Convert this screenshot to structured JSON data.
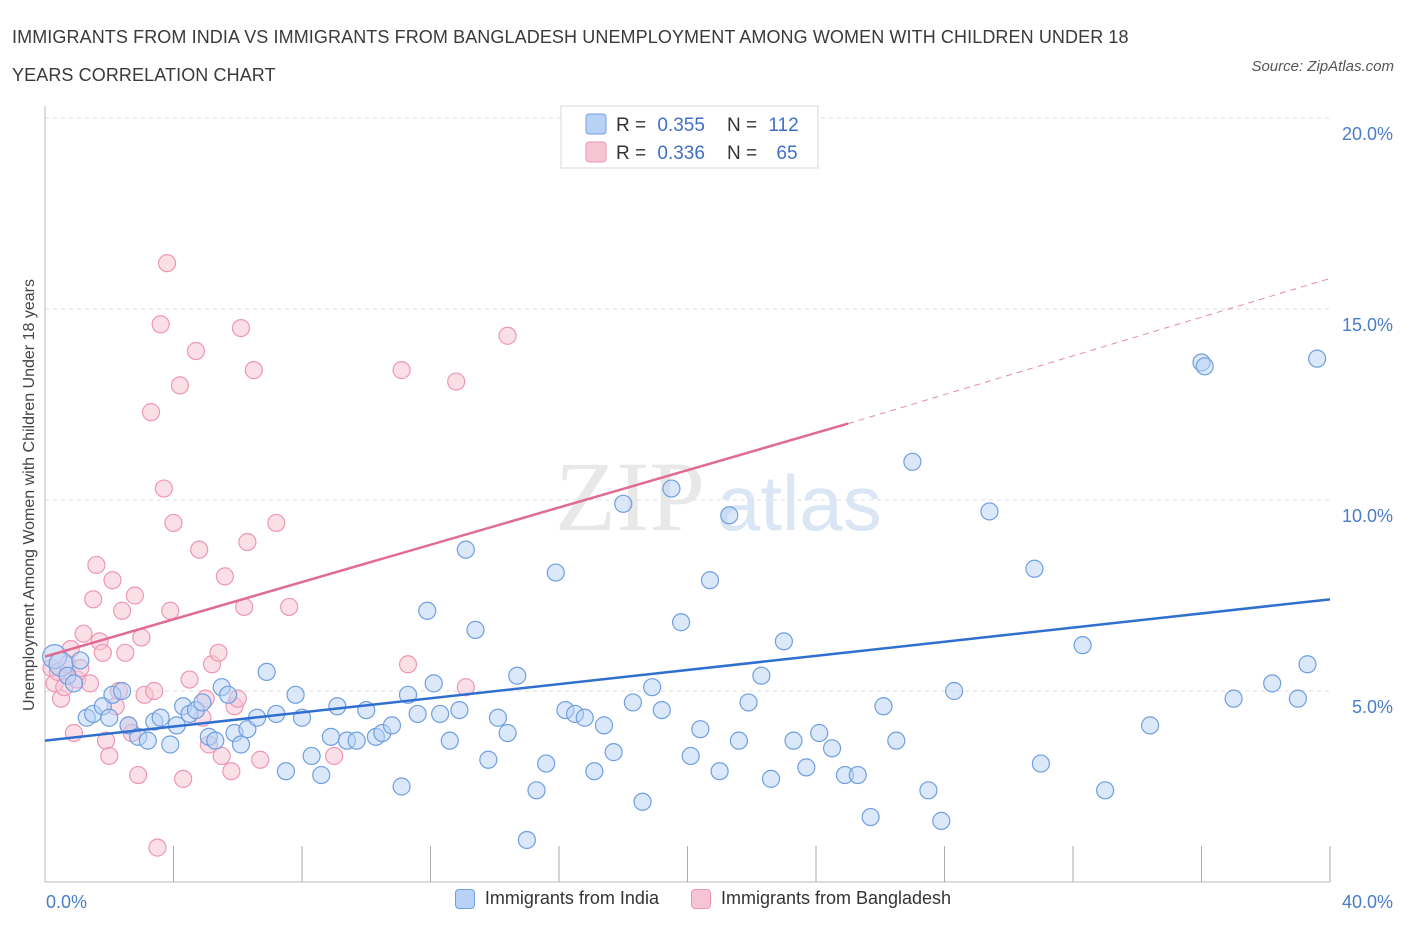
{
  "header": {
    "title": "IMMIGRANTS FROM INDIA VS IMMIGRANTS FROM BANGLADESH UNEMPLOYMENT AMONG WOMEN WITH CHILDREN UNDER 18 YEARS CORRELATION CHART",
    "source": "Source: ZipAtlas.com"
  },
  "watermark": {
    "zip": "ZIP",
    "atlas": "atlas"
  },
  "legend": {
    "india": {
      "r_label": "R = ",
      "r_value": "0.355",
      "n_label": "N = ",
      "n_value": "112"
    },
    "bangladesh": {
      "r_label": "R = ",
      "r_value": "0.336",
      "n_label": "N = ",
      "n_value": "65"
    }
  },
  "colors": {
    "india_fill": "#b8d2f5",
    "india_stroke": "#6f9fe0",
    "india_line": "#2f6fcf",
    "bangladesh_fill": "#f7c4d4",
    "bangladesh_stroke": "#ee97b3",
    "bangladesh_line": "#e06b93",
    "tick": "#4a7cc7",
    "grid": "#dddddd"
  },
  "chart_data": {
    "type": "scatter",
    "ylabel": "Unemployment Among Women with Children Under 18 years",
    "xlim": [
      0,
      40
    ],
    "ylim": [
      0,
      20
    ],
    "x_ticks": [
      {
        "value": 0,
        "label": "0.0%"
      },
      {
        "value": 40,
        "label": "40.0%"
      }
    ],
    "y_ticks": [
      {
        "value": 5,
        "label": "5.0%"
      },
      {
        "value": 10,
        "label": "10.0%"
      },
      {
        "value": 15,
        "label": "15.0%"
      },
      {
        "value": 20,
        "label": "20.0%"
      }
    ],
    "legend_position": "top-center",
    "grid": "horizontal dashed",
    "series": [
      {
        "name": "Immigrants from India",
        "r": 0.355,
        "n": 112,
        "trend": [
          [
            0,
            3.7
          ],
          [
            40,
            7.4
          ]
        ],
        "points": [
          [
            0.3,
            5.9
          ],
          [
            0.5,
            5.7
          ],
          [
            0.7,
            5.4
          ],
          [
            0.9,
            5.2
          ],
          [
            1.1,
            5.8
          ],
          [
            1.3,
            4.3
          ],
          [
            1.5,
            4.4
          ],
          [
            1.8,
            4.6
          ],
          [
            2.0,
            4.3
          ],
          [
            2.1,
            4.9
          ],
          [
            2.4,
            5.0
          ],
          [
            2.6,
            4.1
          ],
          [
            2.9,
            3.8
          ],
          [
            3.2,
            3.7
          ],
          [
            3.4,
            4.2
          ],
          [
            3.6,
            4.3
          ],
          [
            3.9,
            3.6
          ],
          [
            4.1,
            4.1
          ],
          [
            4.3,
            4.6
          ],
          [
            4.5,
            4.4
          ],
          [
            4.7,
            4.5
          ],
          [
            4.9,
            4.7
          ],
          [
            5.1,
            3.8
          ],
          [
            5.3,
            3.7
          ],
          [
            5.5,
            5.1
          ],
          [
            5.7,
            4.9
          ],
          [
            5.9,
            3.9
          ],
          [
            6.1,
            3.6
          ],
          [
            6.3,
            4.0
          ],
          [
            6.6,
            4.3
          ],
          [
            6.9,
            5.5
          ],
          [
            7.2,
            4.4
          ],
          [
            7.5,
            2.9
          ],
          [
            7.8,
            4.9
          ],
          [
            8.0,
            4.3
          ],
          [
            8.3,
            3.3
          ],
          [
            8.6,
            2.8
          ],
          [
            8.9,
            3.8
          ],
          [
            9.1,
            4.6
          ],
          [
            9.4,
            3.7
          ],
          [
            9.7,
            3.7
          ],
          [
            10.0,
            4.5
          ],
          [
            10.3,
            3.8
          ],
          [
            10.5,
            3.9
          ],
          [
            10.8,
            4.1
          ],
          [
            11.1,
            2.5
          ],
          [
            11.3,
            4.9
          ],
          [
            11.6,
            4.4
          ],
          [
            11.9,
            7.1
          ],
          [
            12.1,
            5.2
          ],
          [
            12.3,
            4.4
          ],
          [
            12.6,
            3.7
          ],
          [
            12.9,
            4.5
          ],
          [
            13.1,
            8.7
          ],
          [
            13.4,
            6.6
          ],
          [
            13.8,
            3.2
          ],
          [
            14.1,
            4.3
          ],
          [
            14.4,
            3.9
          ],
          [
            14.7,
            5.4
          ],
          [
            15.0,
            1.1
          ],
          [
            15.3,
            2.4
          ],
          [
            15.6,
            3.1
          ],
          [
            15.9,
            8.1
          ],
          [
            16.2,
            4.5
          ],
          [
            16.5,
            4.4
          ],
          [
            16.8,
            4.3
          ],
          [
            17.1,
            2.9
          ],
          [
            17.4,
            4.1
          ],
          [
            17.7,
            3.4
          ],
          [
            18.0,
            9.9
          ],
          [
            18.3,
            4.7
          ],
          [
            18.6,
            2.1
          ],
          [
            18.9,
            5.1
          ],
          [
            19.2,
            4.5
          ],
          [
            19.5,
            10.3
          ],
          [
            19.8,
            6.8
          ],
          [
            20.1,
            3.3
          ],
          [
            20.4,
            4.0
          ],
          [
            20.7,
            7.9
          ],
          [
            21.0,
            2.9
          ],
          [
            21.3,
            9.6
          ],
          [
            21.6,
            3.7
          ],
          [
            21.9,
            4.7
          ],
          [
            22.3,
            5.4
          ],
          [
            22.6,
            2.7
          ],
          [
            23.0,
            6.3
          ],
          [
            23.3,
            3.7
          ],
          [
            23.7,
            3.0
          ],
          [
            24.1,
            3.9
          ],
          [
            24.5,
            3.5
          ],
          [
            24.9,
            2.8
          ],
          [
            25.3,
            2.8
          ],
          [
            25.7,
            1.7
          ],
          [
            26.1,
            4.6
          ],
          [
            26.5,
            3.7
          ],
          [
            27.0,
            11.0
          ],
          [
            27.5,
            2.4
          ],
          [
            27.9,
            1.6
          ],
          [
            28.3,
            5.0
          ],
          [
            29.4,
            9.7
          ],
          [
            30.8,
            8.2
          ],
          [
            31.0,
            3.1
          ],
          [
            32.3,
            6.2
          ],
          [
            33.0,
            2.4
          ],
          [
            34.4,
            4.1
          ],
          [
            36.0,
            13.6
          ],
          [
            36.1,
            13.5
          ],
          [
            37.0,
            4.8
          ],
          [
            38.2,
            5.2
          ],
          [
            39.0,
            4.8
          ],
          [
            39.3,
            5.7
          ],
          [
            39.6,
            13.7
          ]
        ]
      },
      {
        "name": "Immigrants from Bangladesh",
        "r": 0.336,
        "n": 65,
        "trend": [
          [
            0,
            5.9
          ],
          [
            25,
            12.0
          ]
        ],
        "trend_extension": [
          [
            25,
            12.0
          ],
          [
            40,
            15.8
          ]
        ],
        "points": [
          [
            0.2,
            5.6
          ],
          [
            0.3,
            5.2
          ],
          [
            0.4,
            5.5
          ],
          [
            0.5,
            4.8
          ],
          [
            0.6,
            5.1
          ],
          [
            0.7,
            5.7
          ],
          [
            0.8,
            6.1
          ],
          [
            0.9,
            3.9
          ],
          [
            1.0,
            5.3
          ],
          [
            1.1,
            5.6
          ],
          [
            1.2,
            6.5
          ],
          [
            1.4,
            5.2
          ],
          [
            1.5,
            7.4
          ],
          [
            1.6,
            8.3
          ],
          [
            1.7,
            6.3
          ],
          [
            1.8,
            6.0
          ],
          [
            1.9,
            3.7
          ],
          [
            2.0,
            3.3
          ],
          [
            2.1,
            7.9
          ],
          [
            2.2,
            4.6
          ],
          [
            2.3,
            5.0
          ],
          [
            2.4,
            7.1
          ],
          [
            2.5,
            6.0
          ],
          [
            2.6,
            4.1
          ],
          [
            2.7,
            3.9
          ],
          [
            2.8,
            7.5
          ],
          [
            2.9,
            2.8
          ],
          [
            3.0,
            6.4
          ],
          [
            3.1,
            4.9
          ],
          [
            3.3,
            12.3
          ],
          [
            3.4,
            5.0
          ],
          [
            3.5,
            0.9
          ],
          [
            3.6,
            14.6
          ],
          [
            3.7,
            10.3
          ],
          [
            3.8,
            16.2
          ],
          [
            3.9,
            7.1
          ],
          [
            4.0,
            9.4
          ],
          [
            4.2,
            13.0
          ],
          [
            4.3,
            2.7
          ],
          [
            4.5,
            5.3
          ],
          [
            4.7,
            13.9
          ],
          [
            4.8,
            8.7
          ],
          [
            4.9,
            4.3
          ],
          [
            5.0,
            4.8
          ],
          [
            5.1,
            3.6
          ],
          [
            5.2,
            5.7
          ],
          [
            5.4,
            6.0
          ],
          [
            5.5,
            3.3
          ],
          [
            5.6,
            8.0
          ],
          [
            5.8,
            2.9
          ],
          [
            5.9,
            4.6
          ],
          [
            6.0,
            4.8
          ],
          [
            6.1,
            14.5
          ],
          [
            6.2,
            7.2
          ],
          [
            6.3,
            8.9
          ],
          [
            6.5,
            13.4
          ],
          [
            6.7,
            3.2
          ],
          [
            7.2,
            9.4
          ],
          [
            7.6,
            7.2
          ],
          [
            9.0,
            3.3
          ],
          [
            11.1,
            13.4
          ],
          [
            11.3,
            5.7
          ],
          [
            12.8,
            13.1
          ],
          [
            13.1,
            5.1
          ],
          [
            14.4,
            14.3
          ]
        ]
      }
    ]
  }
}
